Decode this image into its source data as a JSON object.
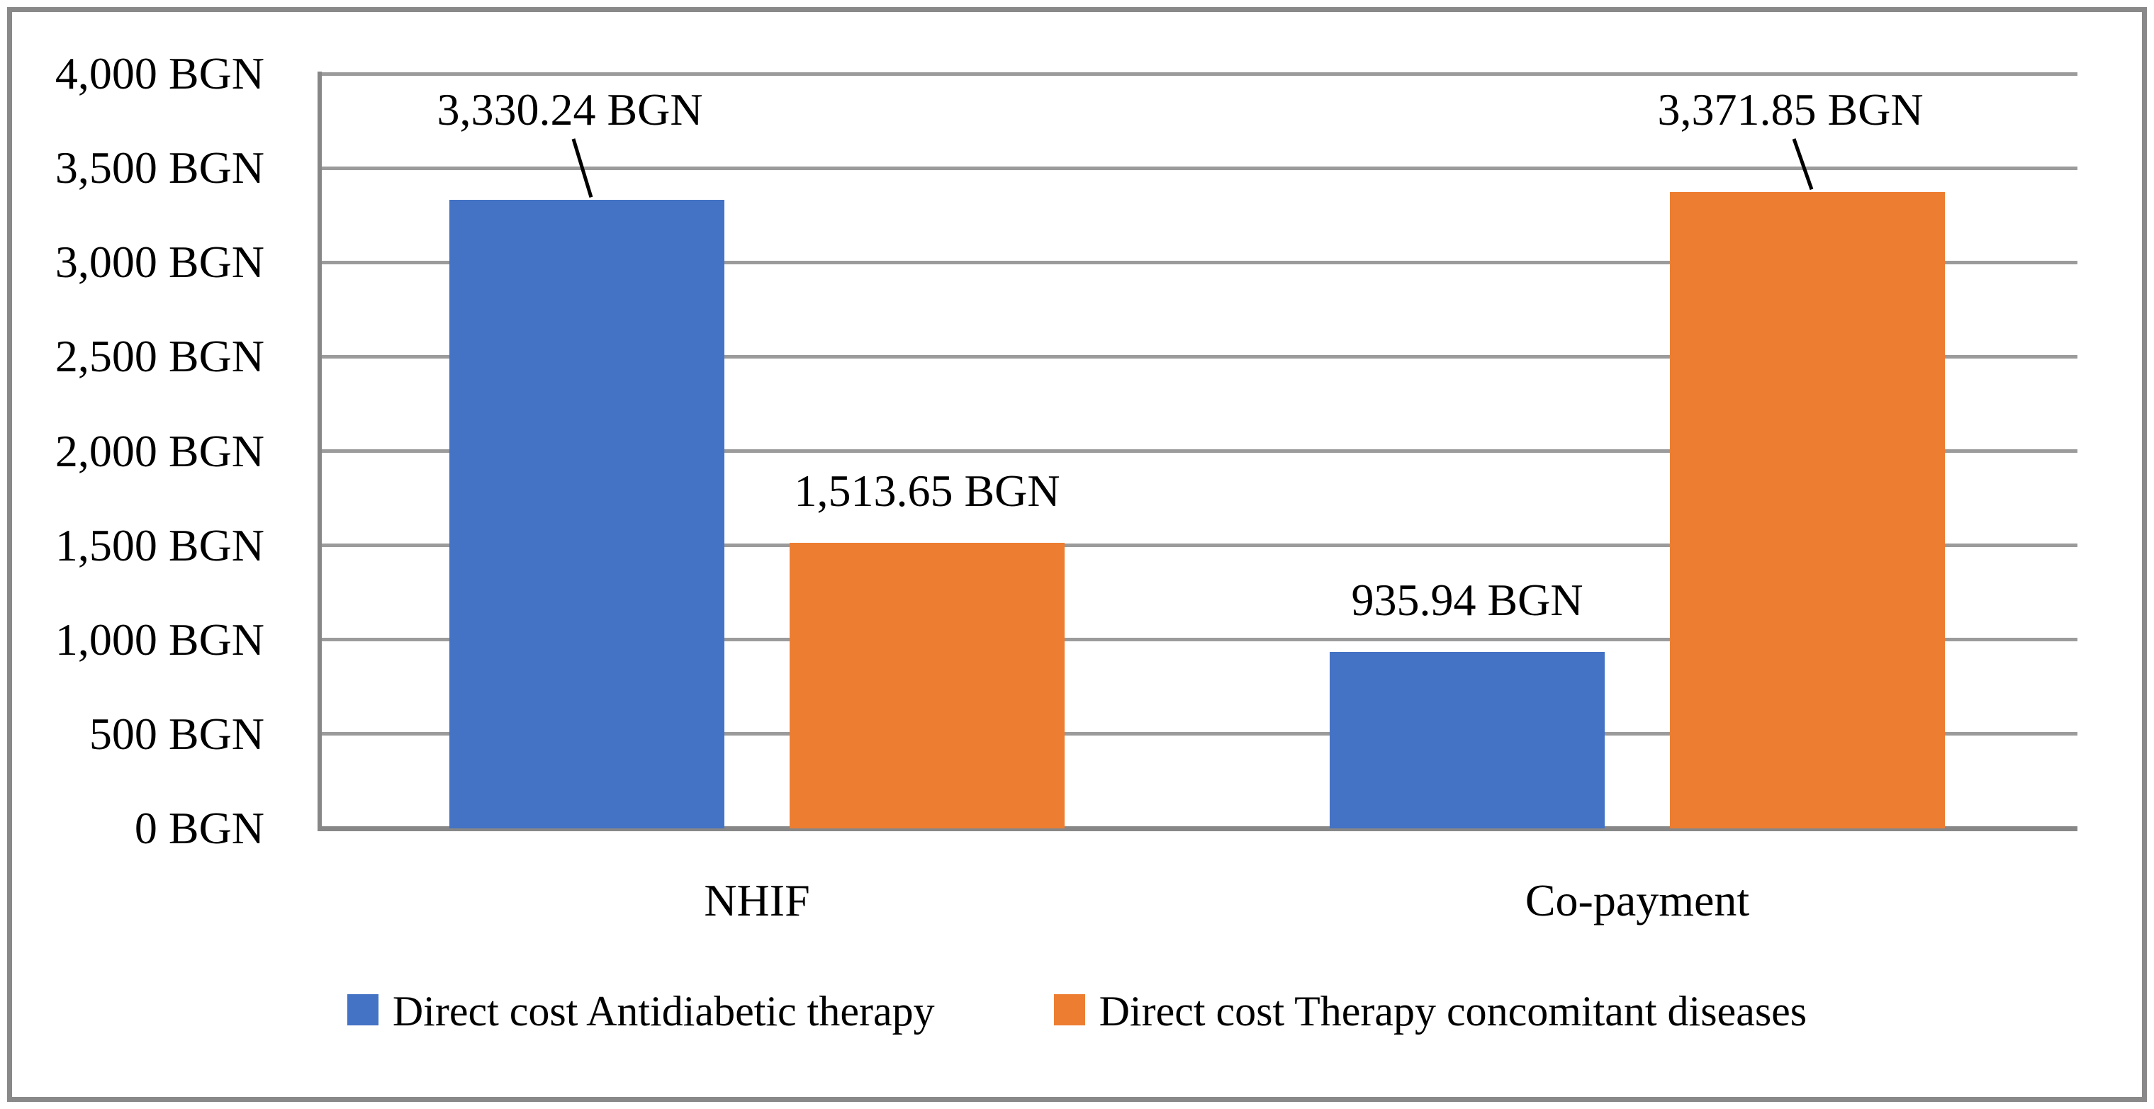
{
  "legend": {
    "items": [
      {
        "label": "Direct cost Antidiabetic therapy",
        "color": "#4472C4"
      },
      {
        "label": "Direct cost Therapy concomitant diseases",
        "color": "#ED7D31"
      }
    ]
  },
  "chart_data": {
    "type": "bar",
    "categories": [
      "NHIF",
      "Co-payment"
    ],
    "series": [
      {
        "name": "Direct cost Antidiabetic therapy",
        "color": "#4472C4",
        "values": [
          3330.24,
          935.94
        ]
      },
      {
        "name": "Direct cost Therapy concomitant diseases",
        "color": "#ED7D31",
        "values": [
          1513.65,
          3371.85
        ]
      }
    ],
    "y_axis": {
      "min": 0,
      "max": 4000,
      "step": 500,
      "unit": "BGN",
      "tick_labels": [
        "0 BGN",
        "500 BGN",
        "1,000 BGN",
        "1,500 BGN",
        "2,000 BGN",
        "2,500 BGN",
        "3,000 BGN",
        "3,500 BGN",
        "4,000 BGN"
      ]
    },
    "x_axis": {
      "tick_labels": [
        "NHIF",
        "Co-payment"
      ]
    },
    "data_labels": [
      {
        "series": 0,
        "category": 0,
        "text": "3,330.24 BGN",
        "callout": true
      },
      {
        "series": 1,
        "category": 0,
        "text": "1,513.65 BGN",
        "callout": false
      },
      {
        "series": 0,
        "category": 1,
        "text": "935.94 BGN",
        "callout": false
      },
      {
        "series": 1,
        "category": 1,
        "text": "3,371.85 BGN",
        "callout": true
      }
    ],
    "grid": true,
    "legend_position": "bottom",
    "colors": {
      "gridline": "#9B9B9B",
      "axis": "#878787",
      "frame_border": "#898989",
      "label_text": "#000000"
    }
  }
}
